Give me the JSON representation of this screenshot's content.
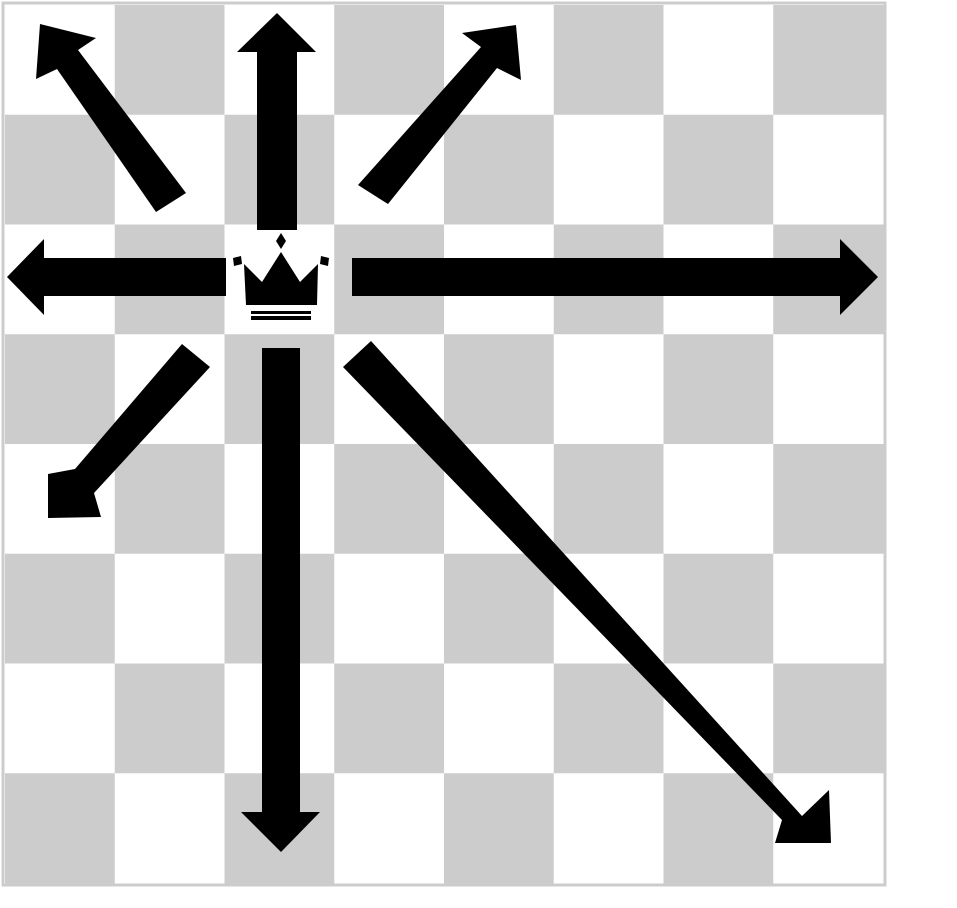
{
  "diagram": {
    "board": {
      "files": 8,
      "ranks": 8,
      "light_color": "#ffffff",
      "dark_color": "#cccccc",
      "border_color": "#cccccc"
    },
    "piece": {
      "type": "queen",
      "icon": "crown-icon",
      "file": 3,
      "rank": 3,
      "color": "#000000"
    },
    "moves": [
      {
        "name": "move-arrow-up",
        "direction": "up",
        "squares": 2
      },
      {
        "name": "move-arrow-up-right",
        "direction": "up-right",
        "squares": 2
      },
      {
        "name": "move-arrow-right",
        "direction": "right",
        "squares": 5
      },
      {
        "name": "move-arrow-down-right",
        "direction": "down-right",
        "squares": 5
      },
      {
        "name": "move-arrow-down",
        "direction": "down",
        "squares": 5
      },
      {
        "name": "move-arrow-down-left",
        "direction": "down-left",
        "squares": 2
      },
      {
        "name": "move-arrow-left",
        "direction": "left",
        "squares": 2
      },
      {
        "name": "move-arrow-up-left",
        "direction": "up-left",
        "squares": 2
      }
    ],
    "arrow_color": "#000000"
  }
}
